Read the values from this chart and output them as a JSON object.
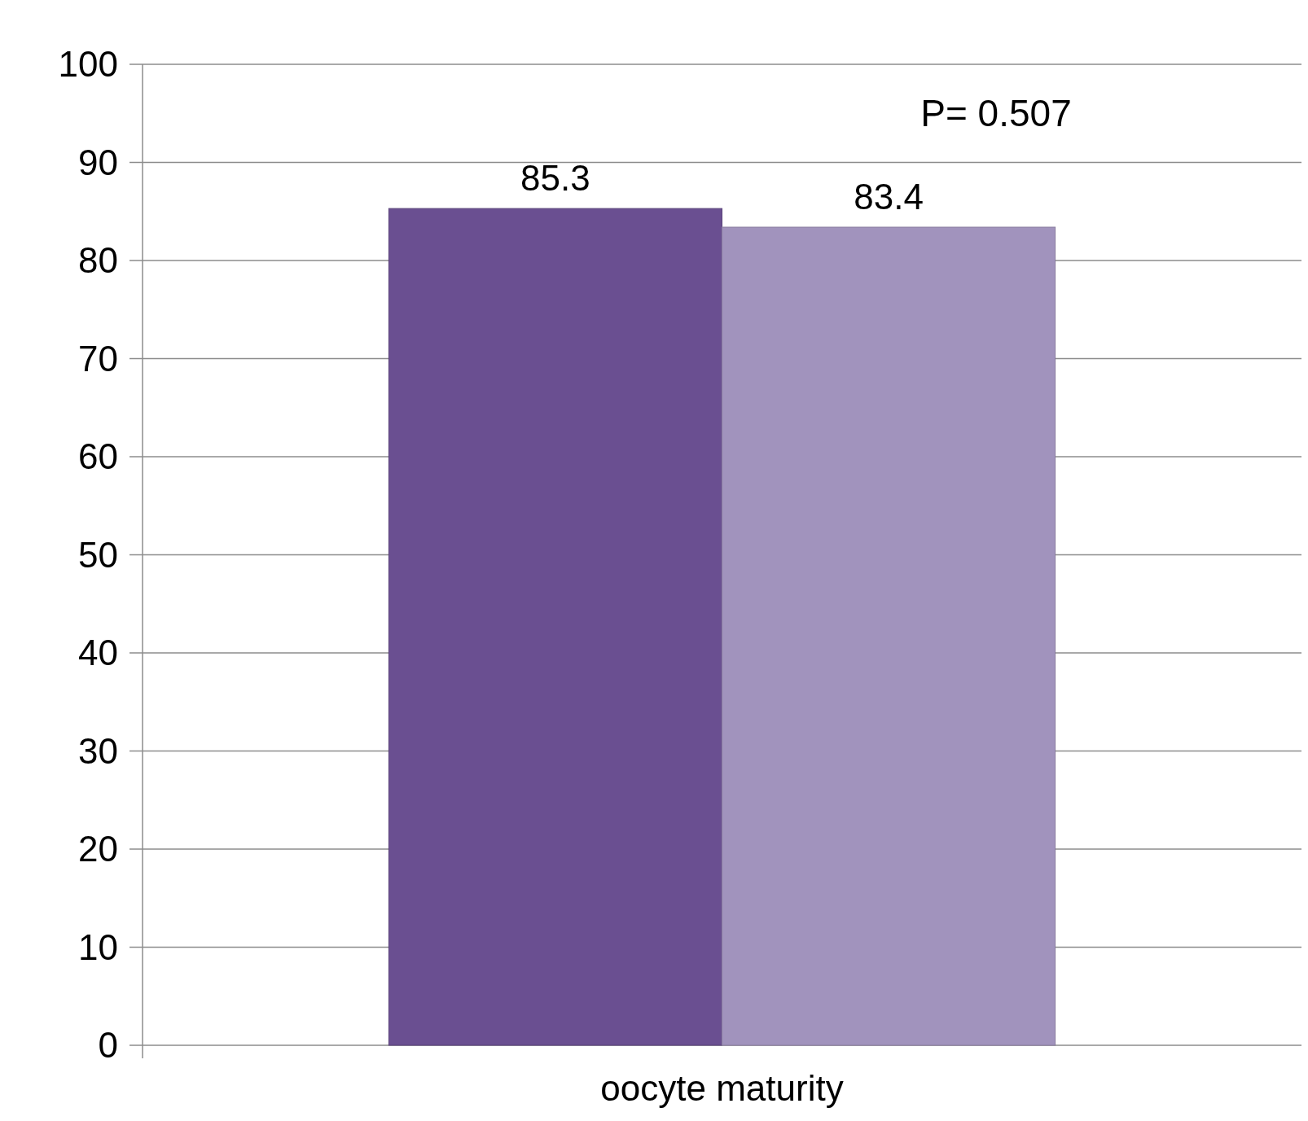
{
  "chart_data": {
    "type": "bar",
    "categories": [
      "oocyte maturity"
    ],
    "series": [
      {
        "color": "#6a4f91",
        "values": [
          85.3
        ]
      },
      {
        "color": "#a193bd",
        "values": [
          83.4
        ]
      }
    ],
    "ylim": [
      0,
      100
    ],
    "yticks": [
      0,
      10,
      20,
      30,
      40,
      50,
      60,
      70,
      80,
      90,
      100
    ],
    "grid": "y",
    "data_labels": true,
    "annotations": [
      "P= 0.507"
    ]
  }
}
